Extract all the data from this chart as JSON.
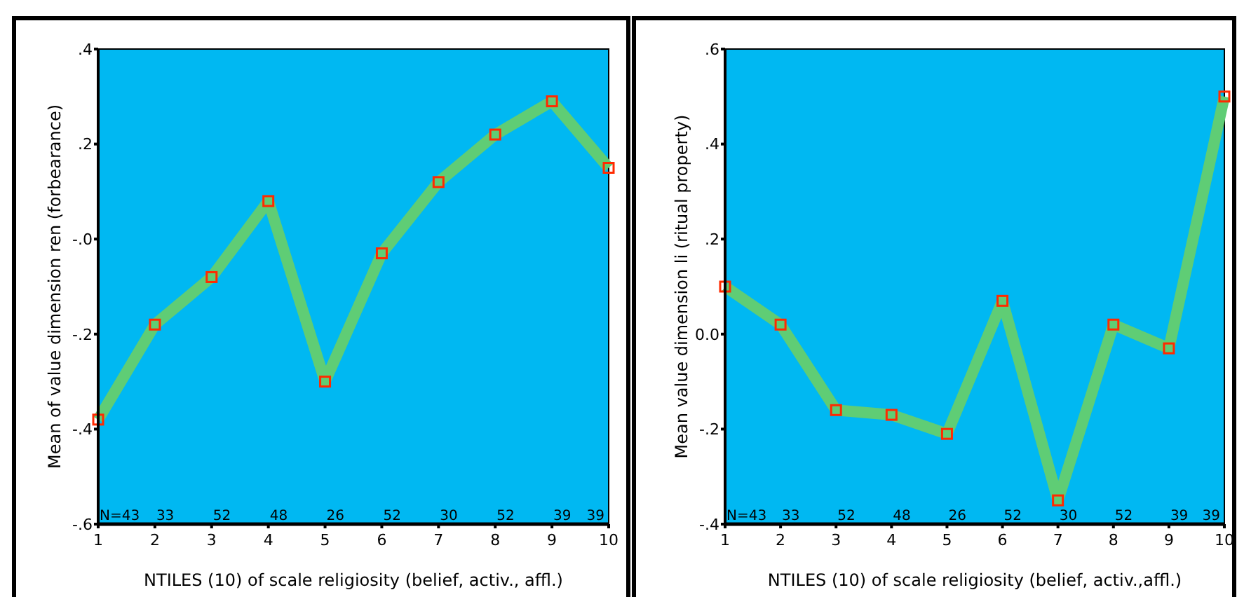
{
  "chart_data": [
    {
      "type": "line",
      "xlabel": "NTILES (10) of scale religiosity (belief, activ., affl.)",
      "ylabel": "Mean of value dimension ren (forbearance)",
      "categories": [
        "1",
        "2",
        "3",
        "4",
        "5",
        "6",
        "7",
        "8",
        "9",
        "10"
      ],
      "series": [
        {
          "color": "#5fcd75",
          "values": [
            -0.38,
            -0.18,
            -0.08,
            0.08,
            -0.3,
            -0.03,
            0.12,
            0.22,
            0.29,
            0.15
          ]
        }
      ],
      "ylim": [
        -0.6,
        0.4
      ],
      "yticks": [
        {
          "value": 0.4,
          "label": ".4"
        },
        {
          "value": 0.2,
          "label": ".2"
        },
        {
          "value": 0,
          "label": "-.0"
        },
        {
          "value": -0.2,
          "label": "-.2"
        },
        {
          "value": -0.4,
          "label": "-.4"
        },
        {
          "value": -0.6,
          "label": "-.6"
        }
      ],
      "annotations": [
        "N=43",
        "33",
        "52",
        "48",
        "26",
        "52",
        "30",
        "52",
        "39",
        "39"
      ],
      "marker": "square",
      "grid": false
    },
    {
      "type": "line",
      "xlabel": "NTILES (10) of scale religiosity (belief, activ.,affl.)",
      "ylabel": "Mean value dimension li (ritual property)",
      "categories": [
        "1",
        "2",
        "3",
        "4",
        "5",
        "6",
        "7",
        "8",
        "9",
        "10"
      ],
      "series": [
        {
          "color": "#5fcd75",
          "values": [
            0.1,
            0.02,
            -0.16,
            -0.17,
            -0.21,
            0.07,
            -0.35,
            0.02,
            -0.03,
            0.5
          ]
        }
      ],
      "ylim": [
        -0.4,
        0.6
      ],
      "yticks": [
        {
          "value": 0.6,
          "label": ".6"
        },
        {
          "value": 0.4,
          "label": ".4"
        },
        {
          "value": 0.2,
          "label": ".2"
        },
        {
          "value": 0,
          "label": "0.0"
        },
        {
          "value": -0.2,
          "label": "-.2"
        },
        {
          "value": -0.4,
          "label": "-.4"
        }
      ],
      "annotations": [
        "N=43",
        "33",
        "52",
        "48",
        "26",
        "52",
        "30",
        "52",
        "39",
        "39"
      ],
      "marker": "square",
      "grid": false
    }
  ]
}
